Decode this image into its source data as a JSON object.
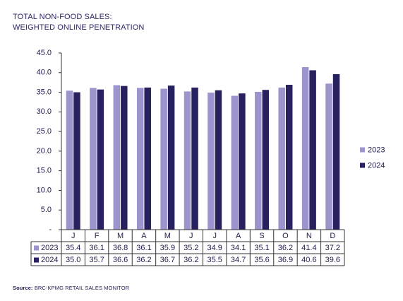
{
  "title_line1": "TOTAL NON-FOOD SALES:",
  "title_line2": "WEIGHTED ONLINE PENETRATION",
  "source_label": "Source:",
  "source_text": "BRC-KPMG RETAIL SALES MONITOR",
  "colors": {
    "series_2023": "#9b94cd",
    "series_2024": "#27215f",
    "text": "#1f1b4d",
    "axis": "#333333"
  },
  "chart_data": {
    "type": "bar",
    "categories": [
      "J",
      "F",
      "M",
      "A",
      "M",
      "J",
      "J",
      "A",
      "S",
      "O",
      "N",
      "D"
    ],
    "series": [
      {
        "name": "2023",
        "values": [
          35.4,
          36.1,
          36.8,
          36.1,
          35.9,
          35.2,
          34.9,
          34.1,
          35.1,
          36.2,
          41.4,
          37.2
        ]
      },
      {
        "name": "2024",
        "values": [
          35.0,
          35.7,
          36.6,
          36.2,
          36.7,
          36.2,
          35.5,
          34.7,
          35.6,
          36.9,
          40.6,
          39.6
        ]
      }
    ],
    "y_ticks": [
      "45.0",
      "40.0",
      "35.0",
      "30.0",
      "25.0",
      "20.0",
      "15.0",
      "10.0",
      "5.0",
      "-"
    ],
    "ylim": [
      0,
      45
    ],
    "grid": false,
    "legend_position": "right",
    "data_table": true
  }
}
